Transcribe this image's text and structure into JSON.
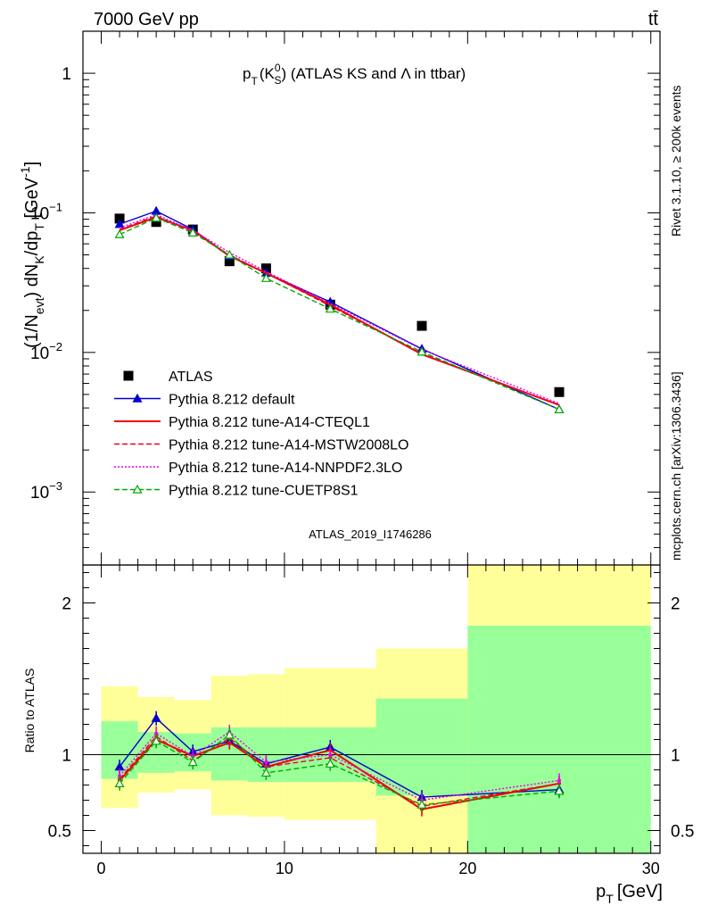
{
  "header": {
    "energy": "7000 GeV pp",
    "process": "tt̄"
  },
  "side_labels": {
    "rivet": "Rivet 3.1.10, ≥ 200k events",
    "mcplots": "mcplots.cern.ch [arXiv:1306.3436]"
  },
  "analysis_id": "ATLAS_2019_I1746286",
  "chart_data": [
    {
      "type": "line",
      "panel": "main",
      "title": "pT(K0S) (ATLAS KS and Λ in ttbar)",
      "title_parts": {
        "p": "p",
        "T": "T",
        "K": "K",
        "zero": "0",
        "S": "S",
        "rest": "(ATLAS KS and Λ in ttbar)"
      },
      "ylabel": "(1/Nevt) dNK/dpT [GeV-1]",
      "ylabel_parts": {
        "a": "(1/N",
        "evt": "evt",
        "b": ") dN",
        "K": "K",
        "c": "/dp",
        "T": "T",
        "d": "  [GeV",
        "exp": "-1",
        "e": "]"
      },
      "yscale": "log",
      "ylim": [
        0.0003,
        2
      ],
      "xlim": [
        -1,
        30.5
      ],
      "ytick_labels": [
        {
          "value": 1,
          "base": "1",
          "exp": ""
        },
        {
          "value": 0.1,
          "base": "10",
          "exp": "−1"
        },
        {
          "value": 0.01,
          "base": "10",
          "exp": "−2"
        },
        {
          "value": 0.001,
          "base": "10",
          "exp": "−3"
        }
      ],
      "x": [
        1,
        3,
        5,
        7,
        9,
        12.5,
        17.5,
        25
      ],
      "series": [
        {
          "name": "ATLAS",
          "color": "#000000",
          "style": "data",
          "values": [
            0.091,
            0.086,
            0.076,
            0.045,
            0.04,
            0.022,
            0.0155,
            0.0052
          ]
        },
        {
          "name": "Pythia 8.212 default",
          "color": "#0000cc",
          "style": "solid-triangle",
          "values": [
            0.083,
            0.103,
            0.076,
            0.049,
            0.037,
            0.023,
            0.0106,
            0.0039
          ]
        },
        {
          "name": "Pythia 8.212 tune-A14-CTEQL1",
          "color": "#ee0000",
          "style": "solid",
          "values": [
            0.075,
            0.093,
            0.075,
            0.049,
            0.037,
            0.022,
            0.0097,
            0.0042
          ]
        },
        {
          "name": "Pythia 8.212 tune-A14-MSTW2008LO",
          "color": "#ee0033",
          "style": "dashed",
          "values": [
            0.076,
            0.095,
            0.073,
            0.05,
            0.037,
            0.0215,
            0.0098,
            0.0042
          ]
        },
        {
          "name": "Pythia 8.212 tune-A14-NNPDF2.3LO",
          "color": "#ee00ee",
          "style": "dotted",
          "values": [
            0.078,
            0.097,
            0.075,
            0.052,
            0.038,
            0.0225,
            0.0105,
            0.0043
          ]
        },
        {
          "name": "Pythia 8.212 tune-CUETP8S1",
          "color": "#00aa00",
          "style": "dashed-open-triangle",
          "values": [
            0.07,
            0.092,
            0.072,
            0.05,
            0.034,
            0.0205,
            0.0101,
            0.0039
          ]
        }
      ]
    },
    {
      "type": "line",
      "panel": "ratio",
      "ylabel": "Ratio to ATLAS",
      "xlabel": "pT [GeV]",
      "xlabel_parts": {
        "p": "p",
        "T": "T",
        "unit": "[GeV]"
      },
      "ylim": [
        0.35,
        2.25
      ],
      "xlim": [
        -1,
        30.5
      ],
      "ytick_labels": [
        "0.5",
        "1",
        "2"
      ],
      "xtick_labels": [
        "0",
        "10",
        "20",
        "30"
      ],
      "bins": [
        [
          0,
          2
        ],
        [
          2,
          4
        ],
        [
          4,
          6
        ],
        [
          6,
          8
        ],
        [
          8,
          10
        ],
        [
          10,
          15
        ],
        [
          15,
          20
        ],
        [
          20,
          30
        ]
      ],
      "band_1sigma": [
        [
          0.84,
          1.22
        ],
        [
          0.88,
          1.15
        ],
        [
          0.89,
          1.14
        ],
        [
          0.83,
          1.18
        ],
        [
          0.82,
          1.18
        ],
        [
          0.82,
          1.18
        ],
        [
          0.73,
          1.37
        ],
        [
          0.35,
          1.85
        ]
      ],
      "band_2sigma": [
        [
          0.65,
          1.45
        ],
        [
          0.75,
          1.38
        ],
        [
          0.77,
          1.36
        ],
        [
          0.6,
          1.52
        ],
        [
          0.59,
          1.53
        ],
        [
          0.57,
          1.57
        ],
        [
          0.35,
          1.7
        ],
        [
          0.35,
          2.25
        ]
      ],
      "x": [
        1,
        3,
        5,
        7,
        9,
        12.5,
        17.5,
        25
      ],
      "series": [
        {
          "name": "Pythia 8.212 default",
          "values": [
            0.92,
            1.24,
            1.02,
            1.09,
            0.94,
            1.05,
            0.72,
            0.77
          ]
        },
        {
          "name": "Pythia 8.212 tune-A14-CTEQL1",
          "values": [
            0.83,
            1.1,
            0.99,
            1.08,
            0.92,
            1.03,
            0.64,
            0.81
          ]
        },
        {
          "name": "Pythia 8.212 tune-A14-MSTW2008LO",
          "values": [
            0.84,
            1.12,
            0.96,
            1.11,
            0.92,
            0.98,
            0.66,
            0.81
          ]
        },
        {
          "name": "Pythia 8.212 tune-A14-NNPDF2.3LO",
          "values": [
            0.86,
            1.14,
            0.99,
            1.15,
            0.95,
            1.0,
            0.7,
            0.83
          ]
        },
        {
          "name": "Pythia 8.212 tune-CUETP8S1",
          "values": [
            0.81,
            1.09,
            0.95,
            1.13,
            0.88,
            0.94,
            0.67,
            0.76
          ]
        }
      ]
    }
  ]
}
